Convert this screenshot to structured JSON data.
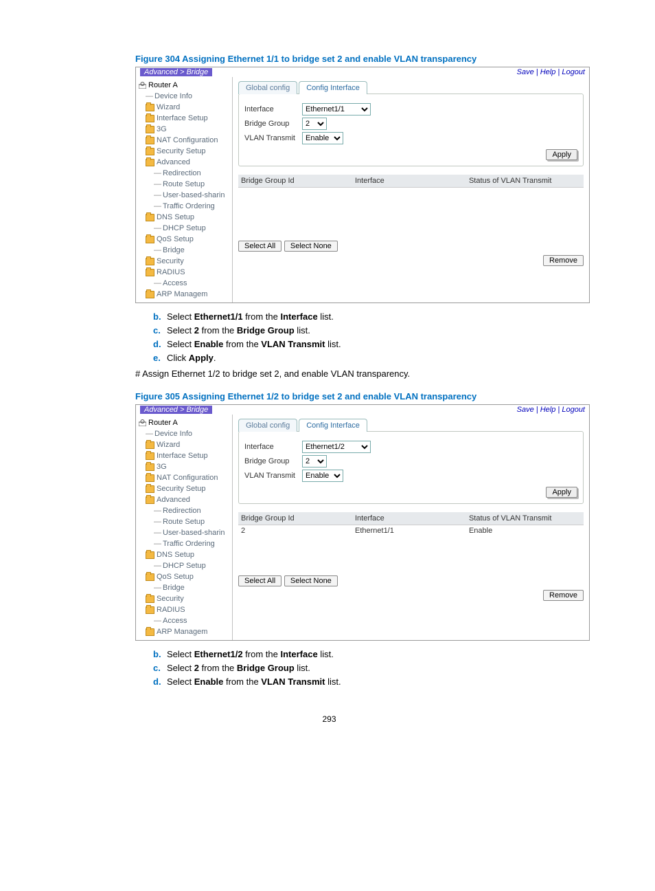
{
  "page_number": "293",
  "figure304": {
    "caption": "Figure 304 Assigning Ethernet 1/1 to bridge set 2 and enable VLAN transparency",
    "breadcrumb": "Advanced > Bridge",
    "header_links": [
      "Save",
      "Help",
      "Logout"
    ],
    "device": "Router A",
    "sidebar": [
      {
        "lvl": 1,
        "label": "Device Info",
        "icon": "dash"
      },
      {
        "lvl": 1,
        "label": "Wizard",
        "icon": "folder"
      },
      {
        "lvl": 1,
        "label": "Interface Setup",
        "icon": "folder"
      },
      {
        "lvl": 1,
        "label": "3G",
        "icon": "folder"
      },
      {
        "lvl": 1,
        "label": "NAT Configuration",
        "icon": "folder"
      },
      {
        "lvl": 1,
        "label": "Security Setup",
        "icon": "folder"
      },
      {
        "lvl": 1,
        "label": "Advanced",
        "icon": "folder"
      },
      {
        "lvl": 2,
        "label": "Redirection",
        "icon": "dash"
      },
      {
        "lvl": 2,
        "label": "Route Setup",
        "icon": "dash"
      },
      {
        "lvl": 2,
        "label": "User-based-sharin",
        "icon": "dash"
      },
      {
        "lvl": 2,
        "label": "Traffic Ordering",
        "icon": "dash"
      },
      {
        "lvl": 1,
        "label": "DNS Setup",
        "icon": "folder"
      },
      {
        "lvl": 2,
        "label": "DHCP Setup",
        "icon": "dash"
      },
      {
        "lvl": 1,
        "label": "QoS Setup",
        "icon": "folder"
      },
      {
        "lvl": 2,
        "label": "Bridge",
        "icon": "dash"
      },
      {
        "lvl": 1,
        "label": "Security",
        "icon": "folder"
      },
      {
        "lvl": 1,
        "label": "RADIUS",
        "icon": "folder"
      },
      {
        "lvl": 2,
        "label": "Access",
        "icon": "dash"
      },
      {
        "lvl": 1,
        "label": "ARP Managem",
        "icon": "folder"
      }
    ],
    "tabs": {
      "t1": "Global config",
      "t2": "Config Interface"
    },
    "form": {
      "interface_label": "Interface",
      "interface_value": "Ethernet1/1",
      "bridge_label": "Bridge Group",
      "bridge_value": "2",
      "vlan_label": "VLAN Transmit",
      "vlan_value": "Enable"
    },
    "apply_label": "Apply",
    "table": {
      "col1": "Bridge Group Id",
      "col2": "Interface",
      "col3": "Status of VLAN Transmit",
      "rows": []
    },
    "select_all": "Select All",
    "select_none": "Select None",
    "remove": "Remove"
  },
  "steps_304": [
    {
      "let": "b.",
      "prefix": "Select ",
      "strong1": "Ethernet1/1",
      "mid": " from the ",
      "strong2": "Interface",
      "suffix": " list."
    },
    {
      "let": "c.",
      "prefix": "Select ",
      "strong1": "2",
      "mid": " from the ",
      "strong2": "Bridge Group",
      "suffix": " list."
    },
    {
      "let": "d.",
      "prefix": "Select ",
      "strong1": "Enable",
      "mid": " from the ",
      "strong2": "VLAN Transmit",
      "suffix": " list."
    },
    {
      "let": "e.",
      "prefix": "Click ",
      "strong1": "Apply",
      "mid": "",
      "strong2": "",
      "suffix": "."
    }
  ],
  "hash_304": "# Assign Ethernet 1/2 to bridge set 2, and enable VLAN transparency.",
  "figure305": {
    "caption": "Figure 305 Assigning Ethernet 1/2 to bridge set 2 and enable VLAN transparency",
    "breadcrumb": "Advanced > Bridge",
    "header_links": [
      "Save",
      "Help",
      "Logout"
    ],
    "device": "Router A",
    "sidebar": [
      {
        "lvl": 1,
        "label": "Device Info",
        "icon": "dash"
      },
      {
        "lvl": 1,
        "label": "Wizard",
        "icon": "folder"
      },
      {
        "lvl": 1,
        "label": "Interface Setup",
        "icon": "folder"
      },
      {
        "lvl": 1,
        "label": "3G",
        "icon": "folder"
      },
      {
        "lvl": 1,
        "label": "NAT Configuration",
        "icon": "folder"
      },
      {
        "lvl": 1,
        "label": "Security Setup",
        "icon": "folder"
      },
      {
        "lvl": 1,
        "label": "Advanced",
        "icon": "folder"
      },
      {
        "lvl": 2,
        "label": "Redirection",
        "icon": "dash"
      },
      {
        "lvl": 2,
        "label": "Route Setup",
        "icon": "dash"
      },
      {
        "lvl": 2,
        "label": "User-based-sharin",
        "icon": "dash"
      },
      {
        "lvl": 2,
        "label": "Traffic Ordering",
        "icon": "dash"
      },
      {
        "lvl": 1,
        "label": "DNS Setup",
        "icon": "folder"
      },
      {
        "lvl": 2,
        "label": "DHCP Setup",
        "icon": "dash"
      },
      {
        "lvl": 1,
        "label": "QoS Setup",
        "icon": "folder"
      },
      {
        "lvl": 2,
        "label": "Bridge",
        "icon": "dash"
      },
      {
        "lvl": 1,
        "label": "Security",
        "icon": "folder"
      },
      {
        "lvl": 1,
        "label": "RADIUS",
        "icon": "folder"
      },
      {
        "lvl": 2,
        "label": "Access",
        "icon": "dash"
      },
      {
        "lvl": 1,
        "label": "ARP Managem",
        "icon": "folder"
      }
    ],
    "tabs": {
      "t1": "Global config",
      "t2": "Config Interface"
    },
    "form": {
      "interface_label": "Interface",
      "interface_value": "Ethernet1/2",
      "bridge_label": "Bridge Group",
      "bridge_value": "2",
      "vlan_label": "VLAN Transmit",
      "vlan_value": "Enable"
    },
    "apply_label": "Apply",
    "table": {
      "col1": "Bridge Group Id",
      "col2": "Interface",
      "col3": "Status of VLAN Transmit",
      "rows": [
        {
          "c1": "2",
          "c2": "Ethernet1/1",
          "c3": "Enable"
        }
      ]
    },
    "select_all": "Select All",
    "select_none": "Select None",
    "remove": "Remove"
  },
  "steps_305": [
    {
      "let": "b.",
      "prefix": "Select ",
      "strong1": "Ethernet1/2",
      "mid": " from the ",
      "strong2": "Interface",
      "suffix": " list."
    },
    {
      "let": "c.",
      "prefix": "Select ",
      "strong1": "2",
      "mid": " from the ",
      "strong2": "Bridge Group",
      "suffix": " list."
    },
    {
      "let": "d.",
      "prefix": "Select ",
      "strong1": "Enable",
      "mid": " from the ",
      "strong2": "VLAN Transmit",
      "suffix": " list."
    }
  ]
}
